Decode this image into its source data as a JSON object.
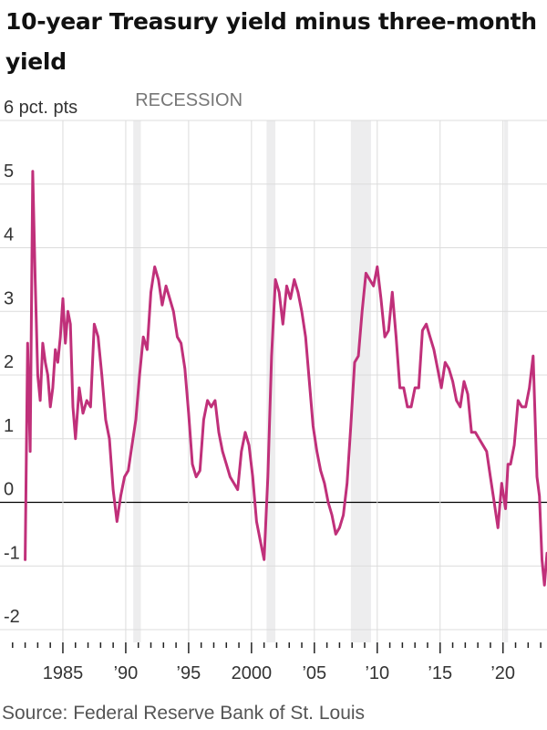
{
  "title": "10-year Treasury yield minus three-month yield",
  "source": "Source: Federal Reserve Bank of St. Louis",
  "colors": {
    "line": "#c0307a",
    "recession": "#ededee",
    "grid": "#dcdcdc",
    "zero": "#000000"
  },
  "chart_data": {
    "type": "line",
    "title": "10-year Treasury yield minus three-month yield",
    "ylabel": "pct. pts",
    "ylim": [
      -2.2,
      6
    ],
    "xlim": [
      1980,
      2023.5
    ],
    "grid": true,
    "y_ticks": [
      {
        "value": 6,
        "label": "6 pct. pts"
      },
      {
        "value": 5,
        "label": "5"
      },
      {
        "value": 4,
        "label": "4"
      },
      {
        "value": 3,
        "label": "3"
      },
      {
        "value": 2,
        "label": "2"
      },
      {
        "value": 1,
        "label": "1"
      },
      {
        "value": 0,
        "label": "0"
      },
      {
        "value": -1,
        "label": "-1"
      },
      {
        "value": -2,
        "label": "-2"
      }
    ],
    "x_ticks": [
      {
        "value": 1985,
        "label": "1985"
      },
      {
        "value": 1990,
        "label": "’90"
      },
      {
        "value": 1995,
        "label": "’95"
      },
      {
        "value": 2000,
        "label": "2000"
      },
      {
        "value": 2005,
        "label": "’05"
      },
      {
        "value": 2010,
        "label": "’10"
      },
      {
        "value": 2015,
        "label": "’15"
      },
      {
        "value": 2020,
        "label": "’20"
      }
    ],
    "recession_label": "RECESSION",
    "recessions": [
      {
        "start": 1990.6,
        "end": 1991.2
      },
      {
        "start": 2001.2,
        "end": 2001.9
      },
      {
        "start": 2007.9,
        "end": 2009.5
      },
      {
        "start": 2020.1,
        "end": 2020.4
      }
    ],
    "series": [
      {
        "x": [
          1982.0,
          1982.2,
          1982.4,
          1982.6,
          1982.8,
          1983.0,
          1983.2,
          1983.4,
          1983.6,
          1983.8,
          1984.0,
          1984.2,
          1984.4,
          1984.6,
          1984.8,
          1985.0,
          1985.2,
          1985.4,
          1985.6,
          1985.8,
          1986.0,
          1986.3,
          1986.6,
          1986.9,
          1987.2,
          1987.5,
          1987.8,
          1988.1,
          1988.4,
          1988.7,
          1989.0,
          1989.3,
          1989.6,
          1989.9,
          1990.2,
          1990.5,
          1990.8,
          1991.1,
          1991.4,
          1991.7,
          1992.0,
          1992.3,
          1992.6,
          1992.9,
          1993.2,
          1993.5,
          1993.8,
          1994.1,
          1994.4,
          1994.7,
          1995.0,
          1995.3,
          1995.6,
          1995.9,
          1996.2,
          1996.5,
          1996.8,
          1997.1,
          1997.4,
          1997.7,
          1998.0,
          1998.3,
          1998.6,
          1998.9,
          1999.2,
          1999.5,
          1999.8,
          2000.1,
          2000.4,
          2000.7,
          2001.0,
          2001.3,
          2001.6,
          2001.9,
          2002.2,
          2002.5,
          2002.8,
          2003.1,
          2003.4,
          2003.7,
          2004.0,
          2004.3,
          2004.6,
          2004.9,
          2005.2,
          2005.5,
          2005.8,
          2006.1,
          2006.4,
          2006.7,
          2007.0,
          2007.3,
          2007.6,
          2007.9,
          2008.2,
          2008.5,
          2008.8,
          2009.1,
          2009.4,
          2009.7,
          2010.0,
          2010.3,
          2010.6,
          2010.9,
          2011.2,
          2011.5,
          2011.8,
          2012.1,
          2012.4,
          2012.7,
          2013.0,
          2013.3,
          2013.6,
          2013.9,
          2014.2,
          2014.5,
          2014.8,
          2015.1,
          2015.4,
          2015.7,
          2016.0,
          2016.3,
          2016.6,
          2016.9,
          2017.2,
          2017.5,
          2017.8,
          2018.1,
          2018.4,
          2018.7,
          2019.0,
          2019.3,
          2019.6,
          2019.9,
          2020.2,
          2020.4,
          2020.6,
          2020.9,
          2021.2,
          2021.5,
          2021.8,
          2022.1,
          2022.4,
          2022.7,
          2022.9,
          2023.1,
          2023.3,
          2023.5
        ],
        "y": [
          -0.9,
          2.5,
          0.8,
          5.2,
          3.5,
          2.0,
          1.6,
          2.5,
          2.2,
          2.0,
          1.5,
          1.8,
          2.4,
          2.2,
          2.6,
          3.2,
          2.5,
          3.0,
          2.8,
          1.5,
          1.0,
          1.8,
          1.4,
          1.6,
          1.5,
          2.8,
          2.6,
          2.0,
          1.3,
          1.0,
          0.2,
          -0.3,
          0.1,
          0.4,
          0.5,
          0.9,
          1.3,
          2.0,
          2.6,
          2.4,
          3.3,
          3.7,
          3.5,
          3.1,
          3.4,
          3.2,
          3.0,
          2.6,
          2.5,
          2.1,
          1.4,
          0.6,
          0.4,
          0.5,
          1.3,
          1.6,
          1.5,
          1.6,
          1.1,
          0.8,
          0.6,
          0.4,
          0.3,
          0.2,
          0.8,
          1.1,
          0.9,
          0.4,
          -0.3,
          -0.6,
          -0.9,
          0.4,
          2.3,
          3.5,
          3.3,
          2.8,
          3.4,
          3.2,
          3.5,
          3.3,
          3.0,
          2.6,
          1.9,
          1.2,
          0.8,
          0.5,
          0.3,
          0.0,
          -0.2,
          -0.5,
          -0.4,
          -0.2,
          0.3,
          1.2,
          2.2,
          2.3,
          3.0,
          3.6,
          3.5,
          3.4,
          3.7,
          3.2,
          2.6,
          2.7,
          3.3,
          2.6,
          1.8,
          1.8,
          1.5,
          1.5,
          1.8,
          1.8,
          2.7,
          2.8,
          2.6,
          2.4,
          2.1,
          1.8,
          2.2,
          2.1,
          1.9,
          1.6,
          1.5,
          1.9,
          1.7,
          1.1,
          1.1,
          1.0,
          0.9,
          0.8,
          0.4,
          0.0,
          -0.4,
          0.3,
          -0.1,
          0.6,
          0.6,
          0.9,
          1.6,
          1.5,
          1.5,
          1.8,
          2.3,
          0.4,
          0.1,
          -0.9,
          -1.3,
          -0.8
        ]
      }
    ]
  }
}
